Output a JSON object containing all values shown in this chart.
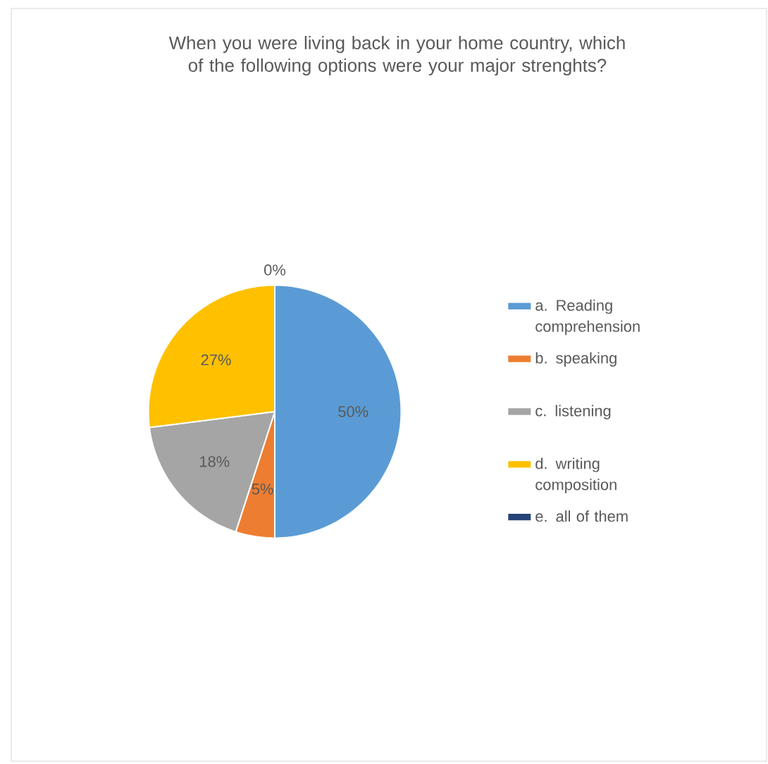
{
  "chart_data": {
    "type": "pie",
    "title": "When you were living back in your home country, which of the following options were your major strenghts?",
    "categories": [
      "a. Reading comprehension",
      "b. speaking",
      "c. listening",
      "d. writing composition",
      "e. all of them"
    ],
    "values": [
      50,
      5,
      18,
      27,
      0
    ],
    "value_labels": [
      "50%",
      "5%",
      "18%",
      "27%",
      "0%"
    ],
    "colors": [
      "#5b9bd5",
      "#ed7d31",
      "#a5a5a5",
      "#ffc000",
      "#264478"
    ],
    "legend": "right"
  }
}
